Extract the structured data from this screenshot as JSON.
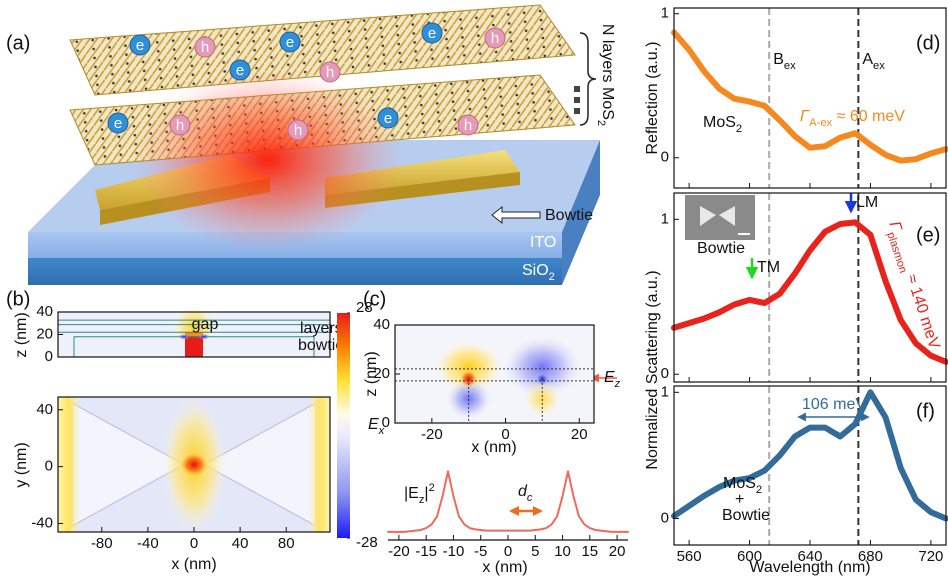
{
  "panel_a": {
    "label": "(a)",
    "layers_label": {
      "main": "N layers MoS",
      "sub": "2"
    },
    "bowtie": "Bowtie",
    "ito": "ITO",
    "sio2": {
      "main": "SiO",
      "sub": "2"
    },
    "electron": "e",
    "hole": "h"
  },
  "chart_data": [
    {
      "type": "line",
      "panel_label": "(d)",
      "ylabel": "Reflection (a.u.)",
      "x": [
        550,
        560,
        570,
        580,
        590,
        600,
        610,
        620,
        630,
        640,
        650,
        660,
        670,
        680,
        690,
        700,
        710,
        720,
        730
      ],
      "values": [
        0.87,
        0.75,
        0.6,
        0.48,
        0.41,
        0.39,
        0.36,
        0.26,
        0.15,
        0.07,
        0.08,
        0.14,
        0.17,
        0.09,
        0.02,
        -0.02,
        -0.01,
        0.03,
        0.06
      ],
      "color": "#f5891f",
      "xlim": [
        550,
        730
      ],
      "ylim": [
        -0.21,
        1.04
      ],
      "xticks": [
        560,
        600,
        640,
        680,
        720
      ],
      "show_xtick_labels": false,
      "yticks": [
        0,
        1
      ],
      "vlines": [
        {
          "x": 613,
          "color": "#aaaaaa",
          "label": {
            "main": "B",
            "sub": "ex"
          }
        },
        {
          "x": 672,
          "color": "#333333",
          "label": {
            "main": "A",
            "sub": "ex"
          }
        }
      ],
      "annotations": {
        "material": {
          "main": "MoS",
          "sub": "2"
        },
        "linewidth": {
          "main": "Γ",
          "sub": "A-ex",
          "tail": " ≈ 60 meV"
        }
      }
    },
    {
      "type": "line",
      "panel_label": "(e)",
      "x": [
        550,
        560,
        570,
        580,
        590,
        600,
        610,
        620,
        630,
        640,
        650,
        660,
        670,
        680,
        690,
        700,
        710,
        720,
        730
      ],
      "values": [
        0.3,
        0.33,
        0.36,
        0.4,
        0.45,
        0.48,
        0.46,
        0.52,
        0.65,
        0.8,
        0.92,
        0.97,
        0.98,
        0.9,
        0.6,
        0.35,
        0.2,
        0.12,
        0.08
      ],
      "color": "#e8231c",
      "xlim": [
        550,
        730
      ],
      "ylim": [
        -0.05,
        1.17
      ],
      "xticks": [
        560,
        600,
        640,
        680,
        720
      ],
      "show_xtick_labels": false,
      "yticks": [
        0,
        1
      ],
      "vlines": [
        {
          "x": 613,
          "color": "#aaaaaa"
        },
        {
          "x": 672,
          "color": "#333333"
        }
      ],
      "annotations": {
        "inset": "Bowtie",
        "lm": "LM",
        "tm": "TM",
        "linewidth": {
          "main": "Γ",
          "sub": "plasmon",
          "tail": " ≈ 140 meV"
        }
      }
    },
    {
      "type": "line",
      "panel_label": "(f)",
      "xlabel": "Wavelength (nm)",
      "ylabel": "Normalized Scattering (a.u.)",
      "x": [
        550,
        560,
        570,
        580,
        590,
        600,
        610,
        620,
        630,
        640,
        650,
        660,
        670,
        680,
        690,
        700,
        710,
        720,
        730
      ],
      "values": [
        0.02,
        0.1,
        0.18,
        0.25,
        0.3,
        0.32,
        0.38,
        0.5,
        0.65,
        0.72,
        0.72,
        0.65,
        0.75,
        1.0,
        0.8,
        0.4,
        0.15,
        0.05,
        0.0
      ],
      "color": "#336b9a",
      "xlim": [
        550,
        730
      ],
      "ylim": [
        -0.21,
        1.05
      ],
      "xticks": [
        560,
        600,
        640,
        680,
        720
      ],
      "yticks": [
        0,
        1
      ],
      "vlines": [
        {
          "x": 613,
          "color": "#aaaaaa"
        },
        {
          "x": 672,
          "color": "#333333"
        }
      ],
      "annotations": {
        "splitting": "106 meV",
        "mat1": {
          "main": "MoS",
          "sub": "2"
        },
        "plus": "+",
        "mat2": "Bowtie"
      }
    },
    {
      "type": "line",
      "xlabel": "x (nm)",
      "x": [
        -22,
        -21,
        -20,
        -19,
        -18,
        -17,
        -16,
        -15,
        -14,
        -13,
        -12,
        -11,
        -10,
        -9,
        -8,
        -7,
        -6,
        -5,
        -4,
        -3,
        -2,
        -1,
        0,
        1,
        2,
        3,
        4,
        5,
        6,
        7,
        8,
        9,
        10,
        11,
        12,
        13,
        14,
        15,
        16,
        17,
        18,
        19,
        20,
        21,
        22
      ],
      "values": [
        0.03,
        0.03,
        0.03,
        0.03,
        0.04,
        0.05,
        0.06,
        0.09,
        0.15,
        0.28,
        0.6,
        1,
        0.6,
        0.28,
        0.15,
        0.09,
        0.07,
        0.06,
        0.05,
        0.05,
        0.05,
        0.05,
        0.05,
        0.05,
        0.05,
        0.05,
        0.05,
        0.06,
        0.07,
        0.09,
        0.15,
        0.28,
        0.6,
        1,
        0.6,
        0.28,
        0.15,
        0.09,
        0.06,
        0.05,
        0.04,
        0.03,
        0.03,
        0.03,
        0.03
      ],
      "color": "#ee6a5a",
      "xlim": [
        -22,
        22
      ],
      "ylim": [
        -0.1,
        1.15
      ],
      "xticks": [
        -20,
        -15,
        -10,
        -5,
        0,
        5,
        10,
        15,
        20
      ],
      "annotations": {
        "ylabel_inline": {
          "main": "|E",
          "sub": "z",
          "tail": "|",
          "sup": "2"
        },
        "spacing": {
          "main": "d",
          "sub": "c"
        }
      }
    },
    {
      "type": "heatmap",
      "panel_label": "(b)",
      "ylabel": "z (nm)",
      "xlim": [
        -118,
        118
      ],
      "ylim": [
        0,
        40
      ],
      "yticks": [
        0,
        20,
        40
      ],
      "annotations": {
        "gap": "gap",
        "layers": "layers",
        "bowtie": "bowtie"
      }
    },
    {
      "type": "heatmap",
      "xlabel": "x (nm)",
      "ylabel": "y (nm)",
      "xlim": [
        -118,
        118
      ],
      "ylim": [
        -46,
        49
      ],
      "xticks": [
        -80,
        -40,
        0,
        40,
        80
      ],
      "yticks": [
        -40,
        0,
        40
      ]
    },
    {
      "type": "heatmap",
      "panel_label": "(c)",
      "xlabel": "x (nm)",
      "ylabel": "z (nm)",
      "xlim": [
        -30,
        24
      ],
      "ylim": [
        0,
        40
      ],
      "xticks": [
        -20,
        0,
        20
      ],
      "yticks": [
        0,
        20,
        40
      ],
      "annotations": {
        "field": {
          "main": "E",
          "sub": "z"
        }
      }
    },
    {
      "type": "colorbar",
      "ylabel": {
        "main": "E",
        "sub": "x"
      },
      "ylim": [
        -28,
        28
      ],
      "yticks": [
        -28,
        28
      ]
    }
  ]
}
